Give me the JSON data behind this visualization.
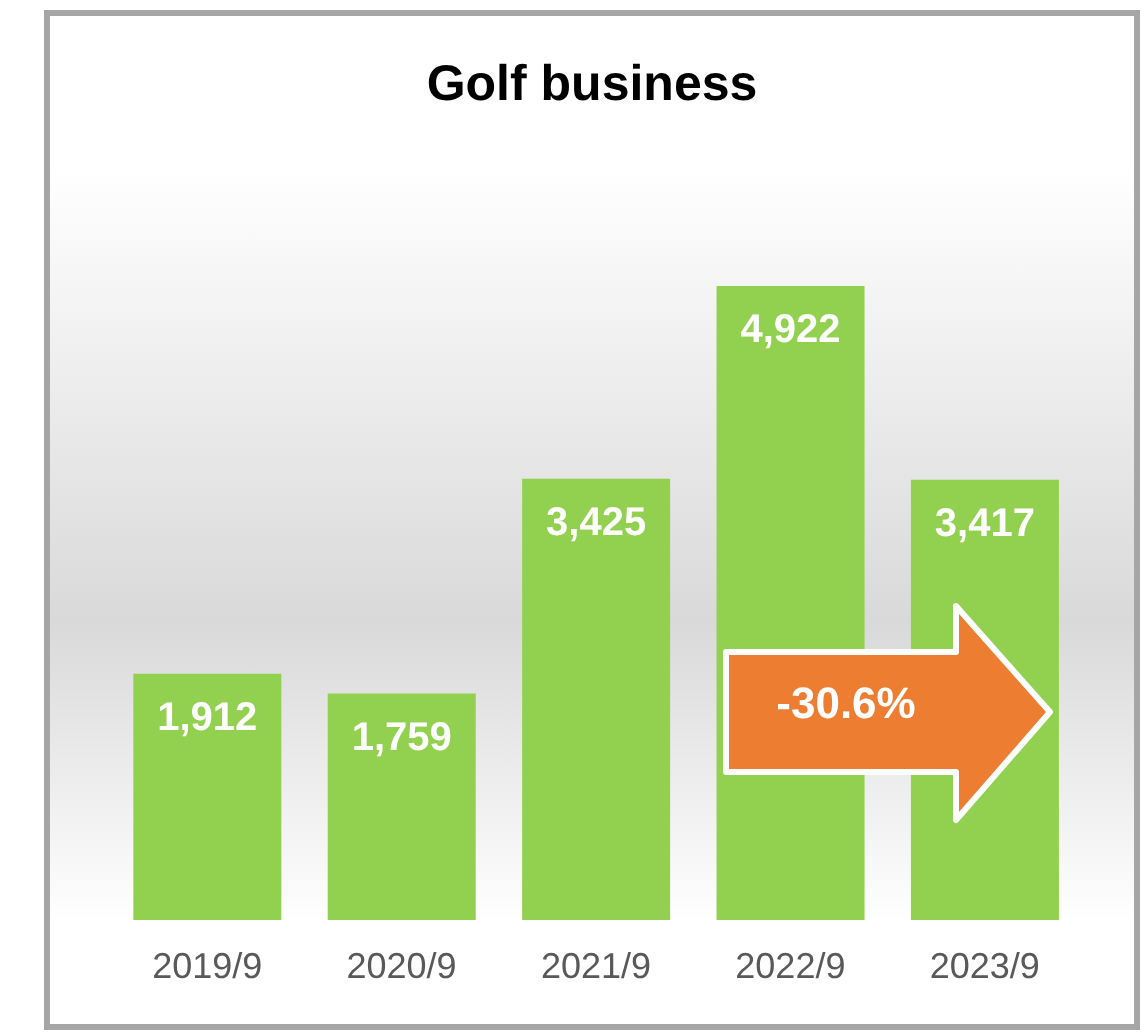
{
  "chart_data": {
    "type": "bar",
    "title": "Golf business",
    "categories": [
      "2019/9",
      "2020/9",
      "2021/9",
      "2022/9",
      "2023/9"
    ],
    "values": [
      1912,
      1759,
      3425,
      4922,
      3417
    ],
    "value_labels": [
      "1,912",
      "1,759",
      "3,425",
      "4,922",
      "3,417"
    ],
    "color": "#92d050",
    "annotations": [
      "-30.6%"
    ]
  }
}
